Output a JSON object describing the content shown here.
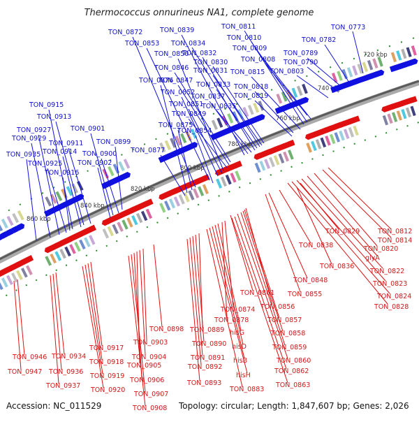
{
  "header": {
    "title": "Thermococcus onnurineus NA1, complete genome"
  },
  "footer": {
    "accession": "Accession: NC_011529",
    "summary": "Topology: circular; Length: 1,847,607 bp; Genes: 2,026"
  },
  "colors": {
    "forward_strand": "#1010e0",
    "reverse_strand": "#e01010",
    "backbone": "#777777",
    "tick_marks": "#2a8a2a"
  },
  "ruler": [
    "720 kbp",
    "740 kbp",
    "760 kbp",
    "780 kbp",
    "800 kbp",
    "820 kbp",
    "840 kbp",
    "860 kbp"
  ],
  "forward_labels": [
    "TON_0773",
    "TON_0782",
    "TON_0789",
    "TON_0790",
    "TON_0803",
    "TON_0808",
    "TON_0809",
    "TON_0810",
    "TON_0811",
    "TON_0815",
    "TON_0818",
    "TON_0819",
    "TON_0830",
    "TON_0831",
    "TON_0832",
    "TON_0833",
    "TON_0834",
    "TON_0835",
    "TON_0837",
    "TON_0839",
    "TON_0846",
    "TON_0847",
    "TON_0849",
    "TON_0850",
    "TON_0851",
    "TON_0852",
    "TON_0853",
    "TON_0854",
    "TON_0872",
    "TON_0875",
    "TON_0876",
    "TON_0877",
    "TON_0899",
    "TON_0900",
    "TON_0901",
    "TON_0902",
    "TON_0911",
    "TON_0913",
    "TON_0914",
    "TON_0915",
    "TON_0916",
    "TON_0925",
    "TON_0927",
    "TON_0929",
    "TON_0935"
  ],
  "reverse_labels": [
    "TON_0812",
    "TON_0814",
    "TON_0820",
    "glyA",
    "TON_0822",
    "TON_0823",
    "TON_0824",
    "TON_0828",
    "TON_0829",
    "TON_0836",
    "TON_0838",
    "TON_0848",
    "TON_0855",
    "TON_0856",
    "TON_0857",
    "TON_0858",
    "TON_0859",
    "TON_0860",
    "TON_0861",
    "TON_0862",
    "TON_0863",
    "TON_0874",
    "TON_0878",
    "hisG",
    "hisD",
    "hisB",
    "hisH",
    "TON_0883",
    "TON_0889",
    "TON_0890",
    "TON_0891",
    "TON_0892",
    "TON_0893",
    "TON_0898",
    "TON_0903",
    "TON_0904",
    "TON_0905",
    "TON_0906",
    "TON_0907",
    "TON_0908",
    "TON_0917",
    "TON_0918",
    "TON_0919",
    "TON_0920",
    "TON_0934",
    "TON_0936",
    "TON_0937",
    "TON_0946",
    "TON_0947"
  ]
}
